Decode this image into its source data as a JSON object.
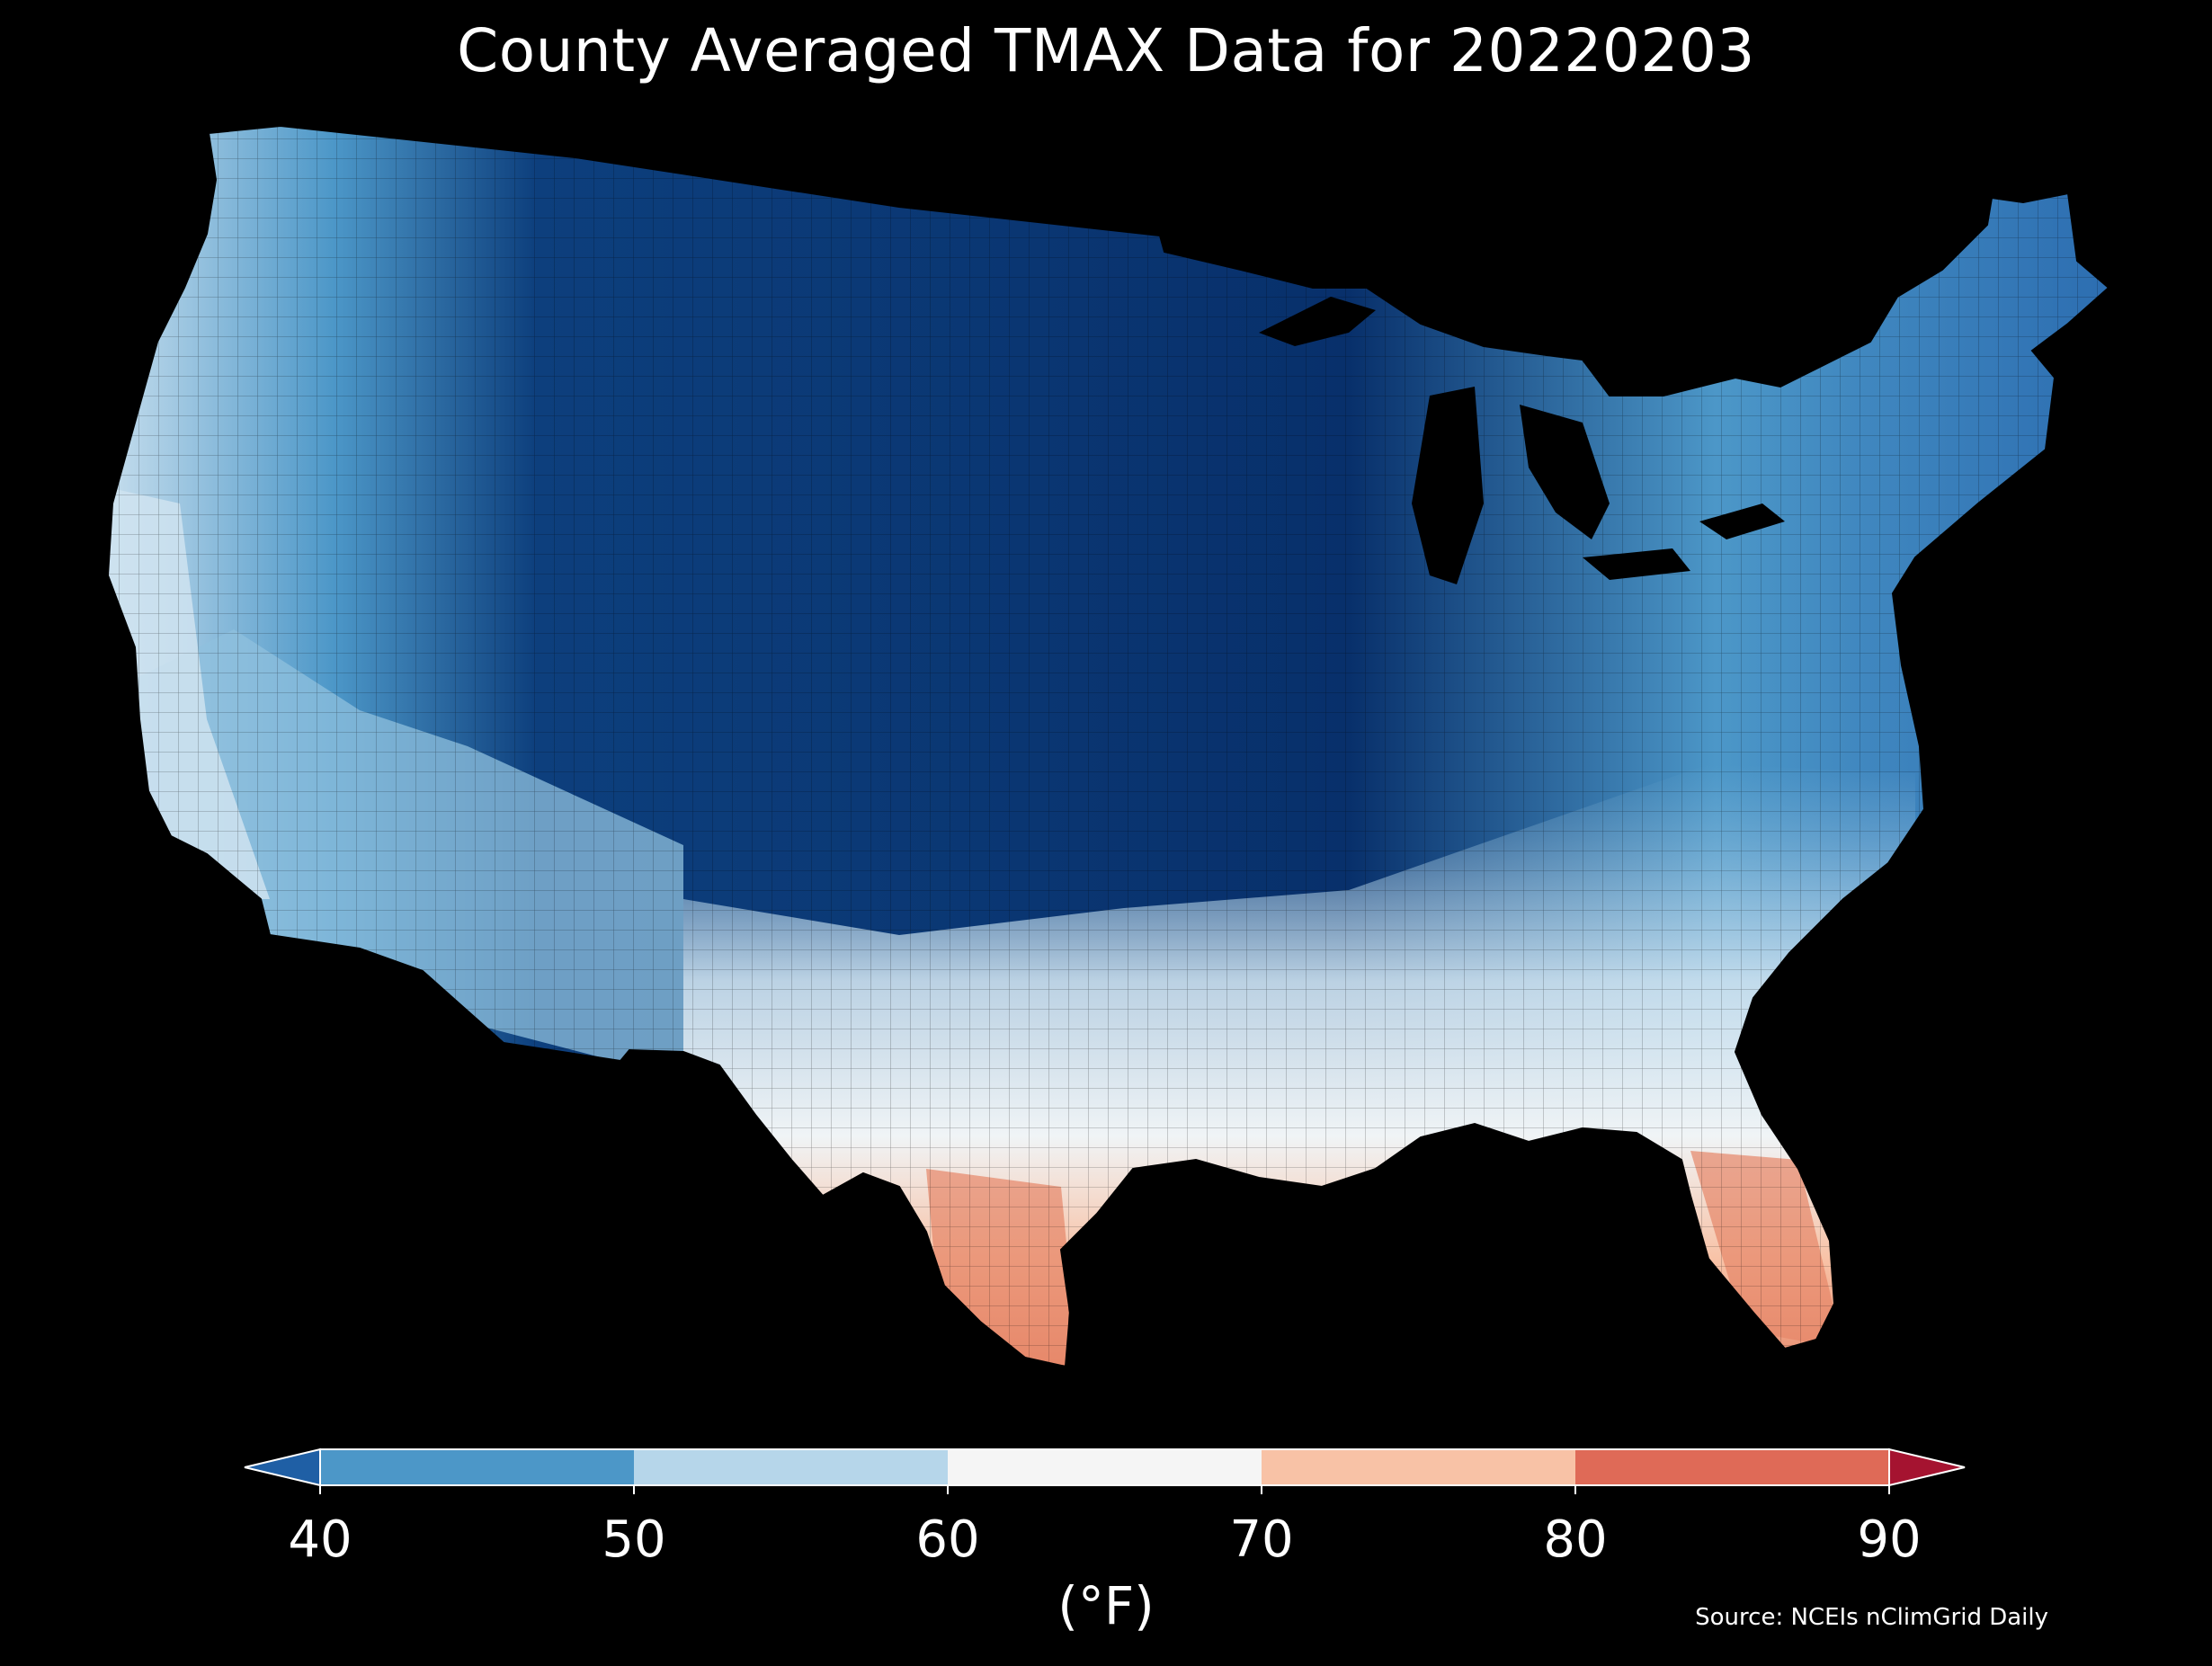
{
  "map": {
    "title": "County Averaged TMAX Data for 20220203",
    "source": "Source: NCEIs nClimGrid Daily",
    "region": "Contiguous United States (county level)",
    "background_color": "#000000",
    "water_color": "#000000",
    "county_border_color": "#000000"
  },
  "colorbar": {
    "units_label": "(°F)",
    "ticks": [
      "40",
      "50",
      "60",
      "70",
      "80",
      "90"
    ],
    "extend": "both",
    "bins": [
      {
        "range": "<40",
        "color": "#1f5fa5"
      },
      {
        "range": "40-50",
        "color": "#4c97c8"
      },
      {
        "range": "50-60",
        "color": "#b6d6ea"
      },
      {
        "range": "60-70",
        "color": "#f5f5f5"
      },
      {
        "range": "70-80",
        "color": "#f8c2a6"
      },
      {
        "range": "80-90",
        "color": "#df6a57"
      },
      {
        "range": ">90",
        "color": "#a51330"
      }
    ]
  },
  "palette": {
    "coldest": "#08306b",
    "very_cold": "#0d3f7d",
    "cold": "#1f5fa5",
    "cool": "#4c97c8",
    "mild_cool": "#8fc0de",
    "light": "#cfe3f0",
    "neutral": "#f0f4f6",
    "warm": "#f8c2a6",
    "hot": "#e68668"
  }
}
